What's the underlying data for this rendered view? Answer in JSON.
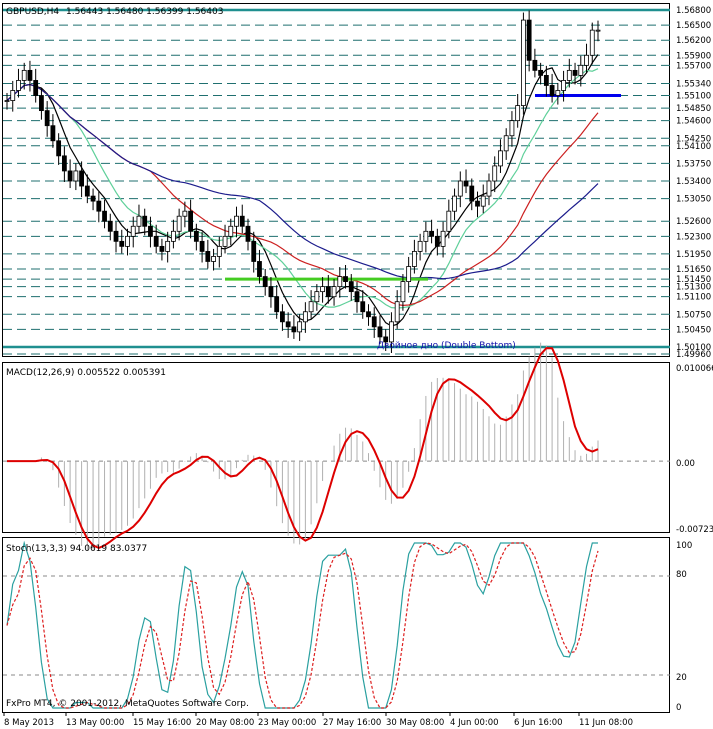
{
  "header": {
    "symbol_timeframe": "GBPUSD,H4",
    "ohlc": "1.56443 1.56480 1.56399 1.56403"
  },
  "footer": {
    "copyright": "FxPro MT4, © 2001-2012, MetaQuotes Software Corp."
  },
  "colors": {
    "background": "#ffffff",
    "grid_dash": "#1f6f6f",
    "teal_line": "#1f8f8f",
    "candle": "#000000",
    "ma_fast": "#000000",
    "ma_green": "#5fd09a",
    "ma_red": "#cc2020",
    "ma_blue": "#1c1c8c",
    "neckline": "#44cc22",
    "support_line": "#0000ee",
    "macd_signal": "#dd0000",
    "macd_hist": "#b0b0b0",
    "stoch_main": "#2aa0a0",
    "stoch_signal": "#dd2020",
    "annotation": "#1010aa"
  },
  "annotation": "Двойное дно (Double Bottom)",
  "price_levels": [
    "1.56800",
    "1.56500",
    "1.56200",
    "1.55900",
    "1.55700",
    "1.55340",
    "1.55100",
    "1.54850",
    "1.54600",
    "1.54250",
    "1.54100",
    "1.53750",
    "1.53400",
    "1.53050",
    "1.52600",
    "1.52300",
    "1.51950",
    "1.51650",
    "1.51450",
    "1.51300",
    "1.51100",
    "1.50750",
    "1.50450",
    "1.50100",
    "1.49960"
  ],
  "highlight_level": "1.56800",
  "bottom_level": "1.50100",
  "macd": {
    "label": "MACD(12,26,9) 0.005522 0.005391",
    "ticks": [
      "0.010066",
      "0.00",
      "-0.00723"
    ]
  },
  "stoch": {
    "label": "Stoch(13,3,3) 94.0619 83.0377",
    "ticks": [
      "100",
      "80",
      "20",
      "0"
    ]
  },
  "time_axis": [
    "8 May 2013",
    "13 May 00:00",
    "15 May 16:00",
    "20 May 08:00",
    "23 May 00:00",
    "27 May 16:00",
    "30 May 08:00",
    "4 Jun 00:00",
    "6 Jun 16:00",
    "11 Jun 08:00"
  ],
  "chart_data": {
    "type": "candlestick",
    "symbol": "GBPUSD",
    "timeframe": "H4",
    "ohlc_last": {
      "open": 1.56443,
      "high": 1.5648,
      "low": 1.56399,
      "close": 1.56403
    },
    "price_range": [
      1.4996,
      1.569
    ],
    "approx_closes": [
      1.55,
      1.552,
      1.554,
      1.556,
      1.554,
      1.551,
      1.548,
      1.545,
      1.542,
      1.539,
      1.536,
      1.534,
      1.536,
      1.533,
      1.531,
      1.53,
      1.528,
      1.526,
      1.524,
      1.522,
      1.521,
      1.523,
      1.525,
      1.527,
      1.525,
      1.523,
      1.521,
      1.52,
      1.522,
      1.524,
      1.527,
      1.528,
      1.524,
      1.522,
      1.52,
      1.518,
      1.519,
      1.521,
      1.523,
      1.525,
      1.527,
      1.525,
      1.522,
      1.518,
      1.515,
      1.513,
      1.511,
      1.508,
      1.506,
      1.505,
      1.504,
      1.506,
      1.508,
      1.51,
      1.512,
      1.513,
      1.511,
      1.513,
      1.515,
      1.514,
      1.512,
      1.51,
      1.508,
      1.507,
      1.505,
      1.503,
      1.502,
      1.506,
      1.51,
      1.514,
      1.517,
      1.52,
      1.522,
      1.524,
      1.523,
      1.521,
      1.524,
      1.528,
      1.531,
      1.534,
      1.533,
      1.53,
      1.529,
      1.531,
      1.534,
      1.537,
      1.54,
      1.543,
      1.546,
      1.549,
      1.566,
      1.558,
      1.556,
      1.555,
      1.553,
      1.551,
      1.552,
      1.554,
      1.556,
      1.555,
      1.557,
      1.559,
      1.564,
      1.564
    ],
    "moving_averages": [
      "black",
      "green",
      "red",
      "blue"
    ],
    "horizontal_lines": [
      {
        "name": "neckline",
        "price": 1.5145
      },
      {
        "name": "support",
        "price": 1.551
      }
    ],
    "macd": {
      "values_last": [
        0.005522,
        0.005391
      ],
      "ylim": [
        -0.00723,
        0.010066
      ]
    },
    "stochastic": {
      "values_last": [
        94.0619,
        83.0377
      ],
      "ylim": [
        0,
        100
      ],
      "levels": [
        20,
        80
      ]
    }
  }
}
